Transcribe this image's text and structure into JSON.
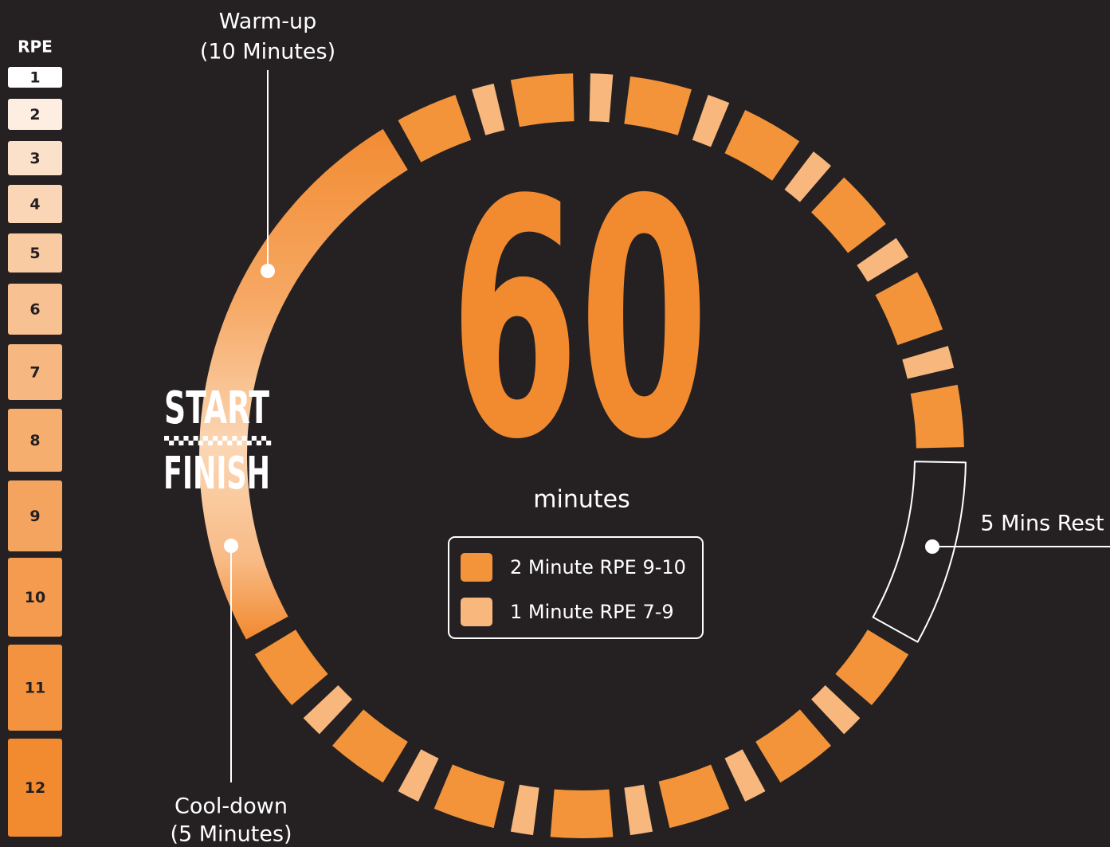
{
  "rpe_scale": {
    "title": "RPE",
    "levels": [
      1,
      2,
      3,
      4,
      5,
      6,
      7,
      8,
      9,
      10,
      11,
      12
    ]
  },
  "center": {
    "value": 60,
    "unit": "minutes"
  },
  "start_label": "START",
  "finish_label": "FINISH",
  "callouts": {
    "warm_up": {
      "line1": "Warm-up",
      "line2": "(10 Minutes)"
    },
    "cool_down": {
      "line1": "Cool-down",
      "line2": "(5 Minutes)"
    },
    "rest": "5 Mins Rest"
  },
  "legend": [
    {
      "label": "2 Minute RPE 9-10",
      "color": "#f3943b"
    },
    {
      "label": "1 Minute RPE 7-9",
      "color": "#f8b77c"
    }
  ]
}
